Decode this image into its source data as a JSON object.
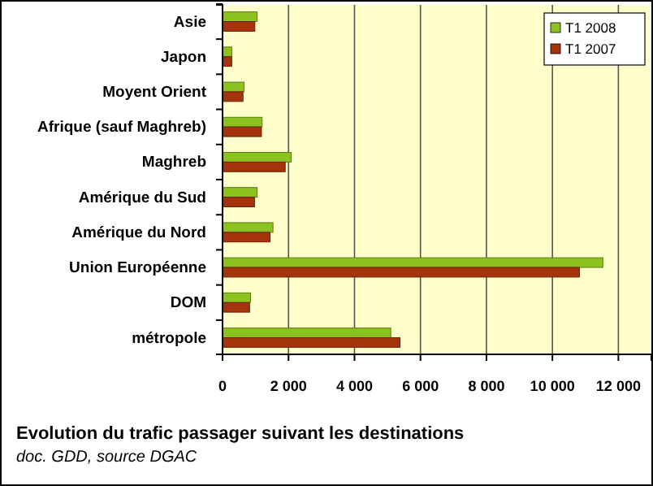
{
  "chart_data": {
    "type": "bar",
    "orientation": "horizontal",
    "title": "Evolution du trafic passager suivant les destinations",
    "annotations": [
      "doc. GDD, source DGAC"
    ],
    "categories": [
      "Asie",
      "Japon",
      "Moyent Orient",
      "Afrique (sauf Maghreb)",
      "Maghreb",
      "Amérique du Sud",
      "Amérique du Nord",
      "Union Européenne",
      "DOM",
      "métropole"
    ],
    "series": [
      {
        "name": "T1 2008",
        "color": "#8cc21e",
        "values": [
          1050,
          280,
          650,
          1200,
          2080,
          1050,
          1530,
          11530,
          850,
          5100
        ]
      },
      {
        "name": "T1 2007",
        "color": "#a5330c",
        "values": [
          980,
          280,
          620,
          1180,
          1900,
          970,
          1440,
          10820,
          820,
          5380
        ]
      }
    ],
    "xlim": [
      0,
      13000
    ],
    "xticks": [
      {
        "value": 0,
        "label": "0"
      },
      {
        "value": 2000,
        "label": "2 000"
      },
      {
        "value": 4000,
        "label": "4 000"
      },
      {
        "value": 6000,
        "label": "6 000"
      },
      {
        "value": 8000,
        "label": "8 000"
      },
      {
        "value": 10000,
        "label": "10 000"
      },
      {
        "value": 12000,
        "label": "12 000"
      }
    ],
    "grid": "x",
    "legend": "top right"
  }
}
